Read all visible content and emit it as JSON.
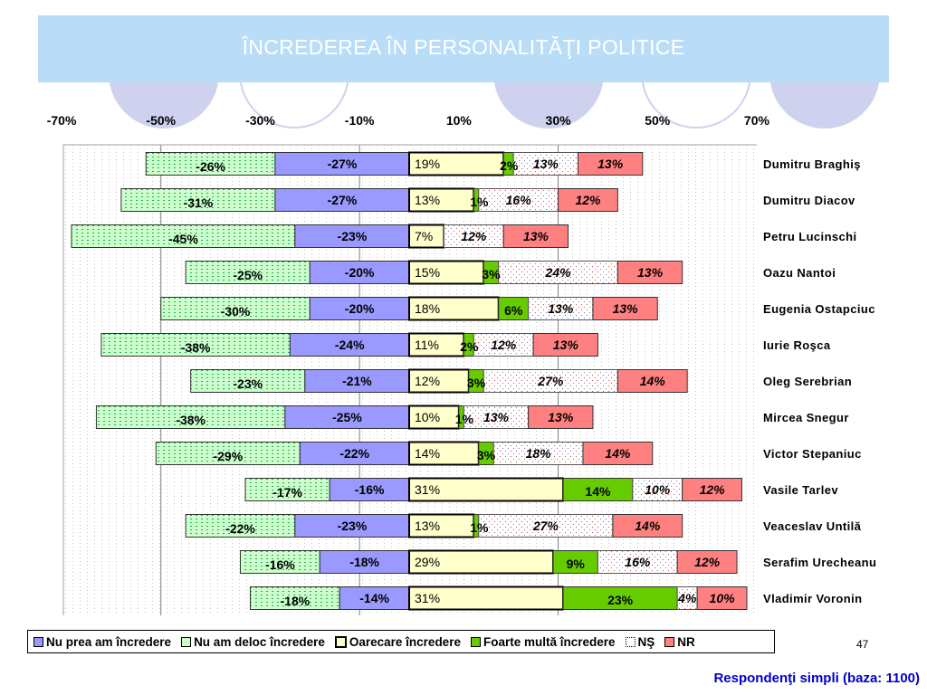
{
  "title": "ÎNCREDEREA ÎN PERSONALITĂŢI POLITICE",
  "page_number": "47",
  "footer": "Respondenţi simpli (baza: 1100)",
  "colors": {
    "header_bg": "#b9ddf7",
    "decor_circle": "#cfd2ee",
    "nu_prea": "#9999ff",
    "nu_deloc": "#ccffcc",
    "oarecare": "#ffffcc",
    "foarte": "#66cc00",
    "ns": "#ffffff",
    "nr": "#ff8080"
  },
  "chart_data": {
    "type": "bar",
    "orientation": "horizontal-diverging",
    "x_ticks": [
      "-70%",
      "-50%",
      "-30%",
      "-10%",
      "10%",
      "30%",
      "50%",
      "70%"
    ],
    "xlim": [
      -70,
      70
    ],
    "legend_position": "bottom",
    "categories": [
      "Dumitru Braghiş",
      "Dumitru Diacov",
      "Petru Lucinschi",
      "Oazu Nantoi",
      "Eugenia Ostapciuc",
      "Iurie Roşca",
      "Oleg Serebrian",
      "Mircea Snegur",
      "Victor Stepaniuc",
      "Vasile Tarlev",
      "Veaceslav Untilă",
      "Serafim Urecheanu",
      "Vladimir Voronin"
    ],
    "series": [
      {
        "name": "Nu prea am încredere",
        "key": "nu_prea",
        "values": [
          -27,
          -27,
          -23,
          -20,
          -20,
          -24,
          -21,
          -25,
          -22,
          -16,
          -23,
          -18,
          -14
        ],
        "labels": [
          "-27%",
          "-27%",
          "-23%",
          "-20%",
          "-20%",
          "-24%",
          "-21%",
          "-25%",
          "-22%",
          "-16%",
          "-23%",
          "-18%",
          "-14%"
        ]
      },
      {
        "name": "Nu am deloc încredere",
        "key": "nu_deloc",
        "values": [
          -26,
          -31,
          -45,
          -25,
          -30,
          -38,
          -23,
          -38,
          -29,
          -17,
          -22,
          -16,
          -18
        ],
        "labels": [
          "-26%",
          "-31%",
          "-45%",
          "-25%",
          "-30%",
          "-38%",
          "-23%",
          "-38%",
          "-29%",
          "-17%",
          "-22%",
          "-16%",
          "-18%"
        ]
      },
      {
        "name": "Oarecare încredere",
        "key": "oarecare",
        "values": [
          19,
          13,
          7,
          15,
          18,
          11,
          12,
          10,
          14,
          31,
          13,
          29,
          31
        ],
        "labels": [
          "19%",
          "13%",
          "7%",
          "15%",
          "18%",
          "11%",
          "12%",
          "10%",
          "14%",
          "31%",
          "13%",
          "29%",
          "31%"
        ]
      },
      {
        "name": "Foarte multă încredere",
        "key": "foarte",
        "values": [
          2,
          1,
          0,
          3,
          6,
          2,
          3,
          1,
          3,
          14,
          1,
          9,
          23
        ],
        "labels": [
          "2%",
          "1%",
          "",
          "3%",
          "6%",
          "2%",
          "3%",
          "1%",
          "3%",
          "14%",
          "1%",
          "9%",
          "23%"
        ]
      },
      {
        "name": "NŞ",
        "key": "ns",
        "values": [
          13,
          16,
          12,
          24,
          13,
          12,
          27,
          13,
          18,
          10,
          27,
          16,
          4
        ],
        "labels": [
          "13%",
          "16%",
          "12%",
          "24%",
          "13%",
          "12%",
          "27%",
          "13%",
          "18%",
          "10%",
          "27%",
          "16%",
          "4%"
        ]
      },
      {
        "name": "NR",
        "key": "nr",
        "values": [
          13,
          12,
          13,
          13,
          13,
          13,
          14,
          13,
          14,
          12,
          14,
          12,
          10
        ],
        "labels": [
          "13%",
          "12%",
          "13%",
          "13%",
          "13%",
          "13%",
          "14%",
          "13%",
          "14%",
          "12%",
          "14%",
          "12%",
          "10%"
        ]
      }
    ]
  }
}
